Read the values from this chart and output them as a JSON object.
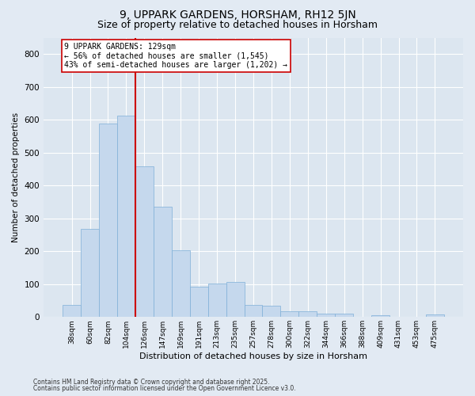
{
  "title1": "9, UPPARK GARDENS, HORSHAM, RH12 5JN",
  "title2": "Size of property relative to detached houses in Horsham",
  "xlabel": "Distribution of detached houses by size in Horsham",
  "ylabel": "Number of detached properties",
  "categories": [
    "38sqm",
    "60sqm",
    "82sqm",
    "104sqm",
    "126sqm",
    "147sqm",
    "169sqm",
    "191sqm",
    "213sqm",
    "235sqm",
    "257sqm",
    "278sqm",
    "300sqm",
    "322sqm",
    "344sqm",
    "366sqm",
    "388sqm",
    "409sqm",
    "431sqm",
    "453sqm",
    "475sqm"
  ],
  "values": [
    38,
    268,
    588,
    612,
    458,
    335,
    202,
    92,
    103,
    107,
    38,
    34,
    17,
    17,
    11,
    10,
    0,
    5,
    0,
    0,
    7
  ],
  "bar_color": "#c5d8ed",
  "bar_edge_color": "#7fb0d8",
  "vline_index": 4,
  "vline_color": "#cc0000",
  "annotation_line1": "9 UPPARK GARDENS: 129sqm",
  "annotation_line2": "← 56% of detached houses are smaller (1,545)",
  "annotation_line3": "43% of semi-detached houses are larger (1,202) →",
  "annotation_box_edgecolor": "#cc0000",
  "ylim": [
    0,
    850
  ],
  "yticks": [
    0,
    100,
    200,
    300,
    400,
    500,
    600,
    700,
    800
  ],
  "footer1": "Contains HM Land Registry data © Crown copyright and database right 2025.",
  "footer2": "Contains public sector information licensed under the Open Government Licence v3.0.",
  "fig_bg_color": "#e2eaf3",
  "plot_bg_color": "#dce6f0",
  "grid_color": "#ffffff",
  "title1_fontsize": 10,
  "title2_fontsize": 9,
  "bar_width": 1.0
}
